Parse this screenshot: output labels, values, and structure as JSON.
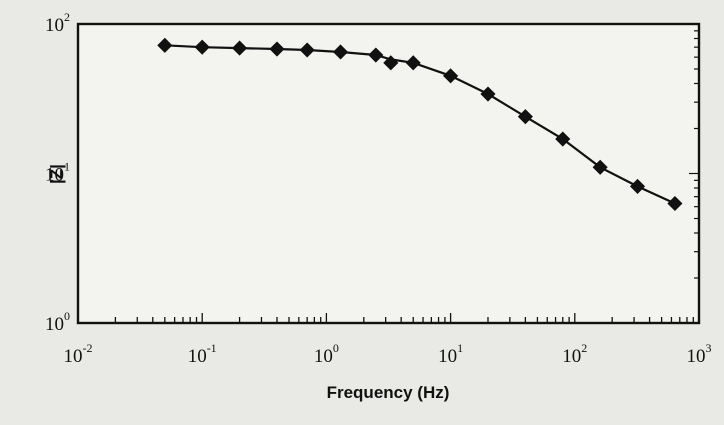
{
  "chart_data": {
    "type": "scatter",
    "title": "",
    "xlabel": "Frequency (Hz)",
    "ylabel": "|Z|",
    "xscale": "log",
    "yscale": "log",
    "xlim": [
      0.01,
      1000
    ],
    "ylim": [
      1,
      100
    ],
    "grid": false,
    "x_ticks": [
      {
        "base": "10",
        "exp": "-2"
      },
      {
        "base": "10",
        "exp": "-1"
      },
      {
        "base": "10",
        "exp": "0"
      },
      {
        "base": "10",
        "exp": "1"
      },
      {
        "base": "10",
        "exp": "2"
      },
      {
        "base": "10",
        "exp": "3"
      }
    ],
    "y_ticks": [
      {
        "base": "10",
        "exp": "0"
      },
      {
        "base": "10",
        "exp": "1"
      },
      {
        "base": "10",
        "exp": "2"
      }
    ],
    "series": [
      {
        "marker": "diamond",
        "color": "#111111",
        "x": [
          0.05,
          0.1,
          0.2,
          0.4,
          0.7,
          1.3,
          2.5,
          3.3,
          5,
          10,
          20,
          40,
          80,
          160,
          320,
          640
        ],
        "y": [
          72,
          70,
          69,
          68,
          67,
          65,
          62,
          55,
          55,
          45,
          34,
          24,
          17,
          11,
          8.2,
          6.3
        ]
      }
    ],
    "fit_line": {
      "color": "#111111",
      "x": [
        0.05,
        0.1,
        0.2,
        0.4,
        0.7,
        1.3,
        2.5,
        3.3,
        5,
        10,
        20,
        40,
        80,
        160,
        320,
        640
      ],
      "y": [
        72,
        70,
        69,
        68,
        67,
        65,
        62,
        58,
        55,
        45,
        34,
        24,
        17,
        11,
        8.2,
        6.3
      ]
    }
  }
}
